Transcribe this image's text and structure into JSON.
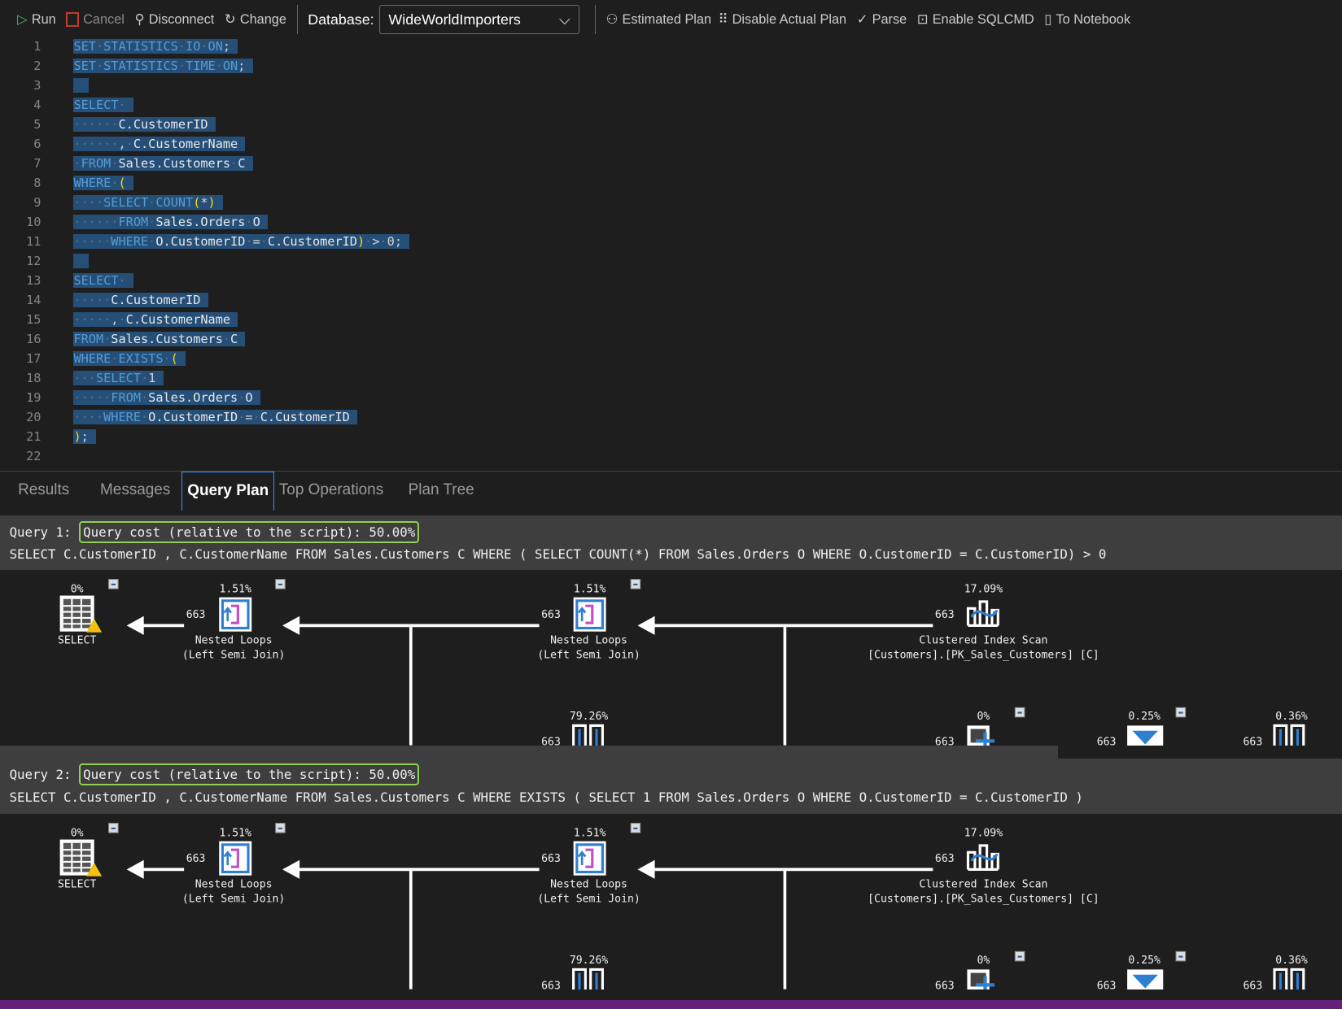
{
  "toolbar": {
    "run": "Run",
    "cancel": "Cancel",
    "disconnect": "Disconnect",
    "change": "Change",
    "database_label": "Database:",
    "database_value": "WideWorldImporters",
    "estimated_plan": "Estimated Plan",
    "disable_actual_plan": "Disable Actual Plan",
    "parse": "Parse",
    "enable_sqlcmd": "Enable SQLCMD",
    "to_notebook": "To Notebook"
  },
  "editor": {
    "keywords": [
      "SET",
      "STATISTICS",
      "IO",
      "ON",
      "TIME",
      "SELECT",
      "FROM",
      "WHERE",
      "COUNT",
      "EXISTS"
    ],
    "lines": [
      "SET·STATISTICS·IO·ON;",
      "SET·STATISTICS·TIME·ON;",
      "",
      "SELECT·",
      "······C.CustomerID",
      "······,·C.CustomerName",
      "·FROM·Sales.Customers·C",
      "WHERE·(",
      "····SELECT·COUNT(*)",
      "······FROM·Sales.Orders·O",
      "·····WHERE·O.CustomerID·=·C.CustomerID)·>·0;",
      "",
      "SELECT·",
      "·····C.CustomerID",
      "·····,·C.CustomerName",
      "FROM·Sales.Customers·C",
      "WHERE·EXISTS·(",
      "···SELECT·1",
      "·····FROM·Sales.Orders·O",
      "····WHERE·O.CustomerID·=·C.CustomerID",
      ");",
      ""
    ]
  },
  "result_tabs": [
    {
      "label": "Results",
      "active": false
    },
    {
      "label": "Messages",
      "active": false
    },
    {
      "label": "Query Plan",
      "active": true
    },
    {
      "label": "Top Operations",
      "active": false
    },
    {
      "label": "Plan Tree",
      "active": false
    }
  ],
  "queries": [
    {
      "label": "Query 1:",
      "cost": "Query cost (relative to the script): 50.00%",
      "sql": "SELECT C.CustomerID , C.CustomerName FROM Sales.Customers C WHERE ( SELECT COUNT(*) FROM Sales.Orders O WHERE O.CustomerID = C.CustomerID) > 0"
    },
    {
      "label": "Query 2:",
      "cost": "Query cost (relative to the script): 50.00%",
      "sql": "SELECT C.CustomerID , C.CustomerName FROM Sales.Customers C WHERE EXISTS ( SELECT 1 FROM Sales.Orders O WHERE O.CustomerID = C.CustomerID )"
    }
  ],
  "plan_nodes": {
    "select": {
      "cost": "0%",
      "label": "SELECT"
    },
    "nl1": {
      "cost": "1.51%",
      "rows": "663",
      "label1": "Nested Loops",
      "label2": "(Left Semi Join)"
    },
    "nl2": {
      "cost": "1.51%",
      "rows": "663",
      "label1": "Nested Loops",
      "label2": "(Left Semi Join)"
    },
    "cis": {
      "cost": "17.09%",
      "rows": "663",
      "label1": "Clustered Index Scan",
      "label2": "[Customers].[PK_Sales_Customers] [C]"
    },
    "b1": {
      "cost": "79.26%",
      "rows": "663"
    },
    "b2": {
      "cost": "0%",
      "rows": "663"
    },
    "b3": {
      "cost": "0.25%",
      "rows": "663"
    },
    "b4": {
      "cost": "0.36%",
      "rows": "663"
    }
  },
  "colors": {
    "accent": "#3794ff",
    "cost_box": "#8fd14f",
    "status_bar": "#68217a",
    "keyword": "#569cd6",
    "selection": "#264f78"
  }
}
